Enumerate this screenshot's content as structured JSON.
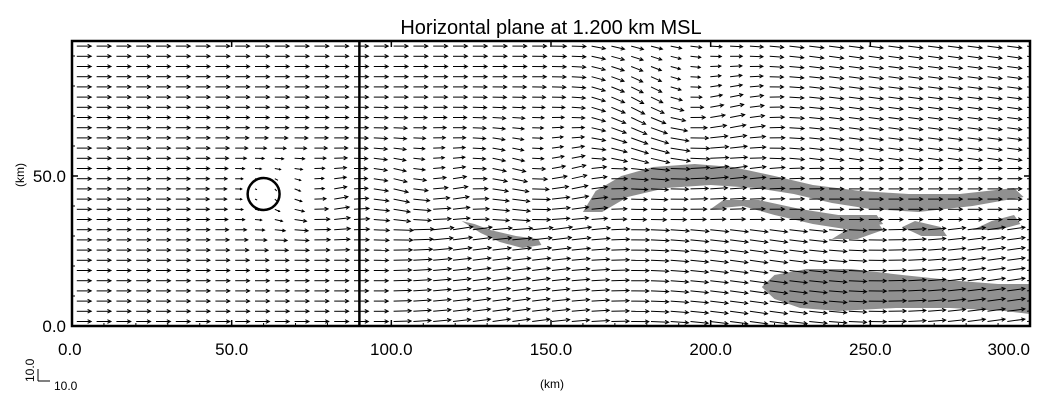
{
  "chart_data": {
    "type": "vector-field",
    "title": "Horizontal plane at 1.200 km MSL",
    "xlabel": "(km)",
    "ylabel": "(km)",
    "xlim": [
      0,
      300
    ],
    "ylim": [
      0,
      95
    ],
    "x_ticks": [
      {
        "value": 0,
        "label": "0.0"
      },
      {
        "value": 50,
        "label": "50.0"
      },
      {
        "value": 100,
        "label": "100.0"
      },
      {
        "value": 150,
        "label": "150.0"
      },
      {
        "value": 200,
        "label": "200.0"
      },
      {
        "value": 250,
        "label": "250.0"
      },
      {
        "value": 300,
        "label": "300.0"
      }
    ],
    "y_ticks": [
      {
        "value": 0,
        "label": "0.0"
      },
      {
        "value": 50,
        "label": "50.0"
      }
    ],
    "reference_vector": {
      "u_label": "10.0",
      "v_label": "10.0"
    },
    "vertical_line_x": 90,
    "circle": {
      "x": 60,
      "y": 44,
      "radius": 5
    },
    "shaded_regions": [
      [
        [
          122,
          35
        ],
        [
          128,
          31
        ],
        [
          134,
          28
        ],
        [
          141,
          26
        ],
        [
          147,
          27
        ],
        [
          146,
          29
        ],
        [
          139,
          30
        ],
        [
          131,
          32
        ],
        [
          126,
          34
        ]
      ],
      [
        [
          160,
          38
        ],
        [
          164,
          45
        ],
        [
          172,
          50
        ],
        [
          182,
          53
        ],
        [
          195,
          54
        ],
        [
          207,
          53
        ],
        [
          220,
          50
        ],
        [
          232,
          47
        ],
        [
          247,
          45
        ],
        [
          262,
          44
        ],
        [
          278,
          44
        ],
        [
          295,
          46
        ],
        [
          298,
          43
        ],
        [
          282,
          40
        ],
        [
          265,
          38
        ],
        [
          250,
          39
        ],
        [
          238,
          41
        ],
        [
          226,
          44
        ],
        [
          214,
          46
        ],
        [
          200,
          47
        ],
        [
          186,
          46
        ],
        [
          174,
          43
        ],
        [
          166,
          38
        ]
      ],
      [
        [
          200,
          39
        ],
        [
          210,
          40
        ],
        [
          220,
          37
        ],
        [
          232,
          34
        ],
        [
          244,
          32
        ],
        [
          254,
          34
        ],
        [
          252,
          37
        ],
        [
          240,
          37
        ],
        [
          228,
          39
        ],
        [
          215,
          42
        ],
        [
          204,
          42
        ]
      ],
      [
        [
          238,
          29
        ],
        [
          244,
          33
        ],
        [
          252,
          35
        ],
        [
          254,
          32
        ],
        [
          246,
          29
        ]
      ],
      [
        [
          260,
          33
        ],
        [
          266,
          30
        ],
        [
          274,
          30
        ],
        [
          272,
          33
        ],
        [
          264,
          35
        ]
      ],
      [
        [
          282,
          32
        ],
        [
          288,
          35
        ],
        [
          295,
          37
        ],
        [
          297,
          34
        ],
        [
          290,
          32
        ]
      ],
      [
        [
          216,
          13
        ],
        [
          220,
          17
        ],
        [
          230,
          19
        ],
        [
          244,
          19
        ],
        [
          260,
          17
        ],
        [
          278,
          15
        ],
        [
          290,
          14
        ],
        [
          300,
          14
        ],
        [
          300,
          4
        ],
        [
          292,
          5
        ],
        [
          275,
          6
        ],
        [
          258,
          6
        ],
        [
          240,
          5
        ],
        [
          228,
          6
        ],
        [
          220,
          9
        ]
      ]
    ]
  }
}
